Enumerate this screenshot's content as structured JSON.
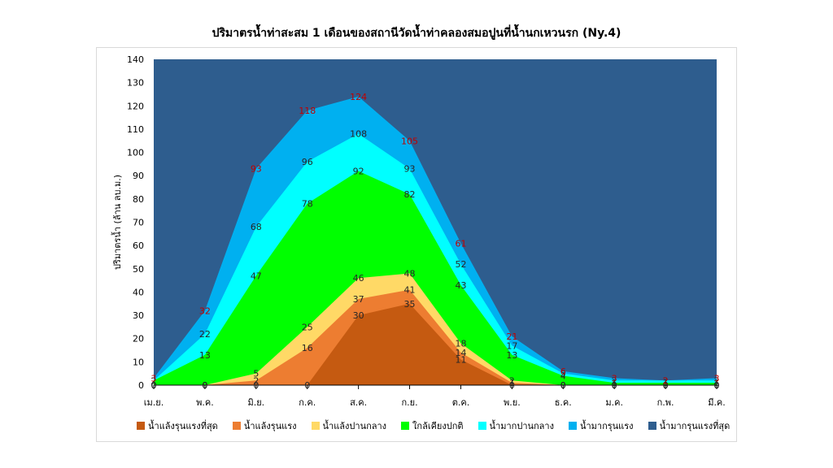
{
  "chart_data": {
    "type": "area",
    "title": "ปริมาตรน้ำท่าสะสม 1 เดือนของสถานีวัดน้ำท่าคลองสมอปูนที่น้ำนกเหวนรก (Ny.4)",
    "ylabel": "ปริมาตรน้ำ (ล้าน ลบ.ม.)",
    "xlabel": "",
    "ylim": [
      0,
      140
    ],
    "yticks": [
      0,
      10,
      20,
      30,
      40,
      50,
      60,
      70,
      80,
      90,
      100,
      110,
      120,
      130,
      140
    ],
    "categories": [
      "เม.ย.",
      "พ.ค.",
      "มิ.ย.",
      "ก.ค.",
      "ส.ค.",
      "ก.ย.",
      "ต.ค.",
      "พ.ย.",
      "ธ.ค.",
      "ม.ค.",
      "ก.พ.",
      "มี.ค."
    ],
    "series": [
      {
        "name": "น้ำแล้งรุนแรงที่สุด",
        "color": "#c55a11",
        "values": [
          0,
          0,
          0,
          0,
          30,
          35,
          11,
          0,
          0,
          0,
          0,
          0
        ]
      },
      {
        "name": "น้ำแล้งรุนแรง",
        "color": "#ed7d31",
        "values": [
          0,
          0,
          2,
          16,
          37,
          41,
          14,
          1,
          0,
          0,
          0,
          0
        ]
      },
      {
        "name": "น้ำแล้งปานกลาง",
        "color": "#ffd966",
        "values": [
          0,
          0,
          5,
          25,
          46,
          48,
          18,
          2,
          0,
          0,
          0,
          0
        ]
      },
      {
        "name": "ใกล้เคียงปกติ",
        "color": "#00ff00",
        "values": [
          2,
          13,
          47,
          78,
          92,
          82,
          43,
          13,
          4,
          1,
          1,
          1
        ]
      },
      {
        "name": "น้ำมากปานกลาง",
        "color": "#00ffff",
        "values": [
          2,
          22,
          68,
          96,
          108,
          93,
          52,
          17,
          5,
          2,
          2,
          2
        ]
      },
      {
        "name": "น้ำมากรุนแรง",
        "color": "#00b0f0",
        "values": [
          3,
          32,
          93,
          118,
          124,
          105,
          61,
          21,
          6,
          3,
          2,
          3
        ]
      },
      {
        "name": "น้ำมากรุนแรงที่สุด",
        "color": "#2e5d8e",
        "values": [
          140,
          140,
          140,
          140,
          140,
          140,
          140,
          140,
          140,
          140,
          140,
          140
        ]
      }
    ],
    "data_labels": {
      "น้ำแล้งรุนแรงที่สุด": [
        "0",
        "0",
        "0",
        "0",
        "30",
        "35",
        "11",
        "0",
        "0",
        "0",
        "0",
        "0"
      ],
      "น้ำแล้งรุนแรง": [
        "0",
        "0",
        "2",
        "16",
        "37",
        "41",
        "14",
        "1",
        "0",
        "0",
        "0",
        "0"
      ],
      "น้ำแล้งปานกลาง": [
        "0",
        "0",
        "5",
        "25",
        "46",
        "48",
        "18",
        "2",
        "0",
        "0",
        "0",
        "0"
      ],
      "ใกล้เคียงปกติ": [
        "2",
        "13",
        "47",
        "78",
        "92",
        "82",
        "43",
        "13",
        "4",
        "1",
        "1",
        "1"
      ],
      "น้ำมากปานกลาง": [
        "2",
        "22",
        "68",
        "96",
        "108",
        "93",
        "52",
        "17",
        "5",
        "2",
        "2",
        "2"
      ],
      "น้ำมากรุนแรง": [
        "3",
        "32",
        "93",
        "118",
        "124",
        "105",
        "61",
        "21",
        "6",
        "3",
        "2",
        "3"
      ]
    },
    "grid": false,
    "legend_position": "bottom"
  }
}
